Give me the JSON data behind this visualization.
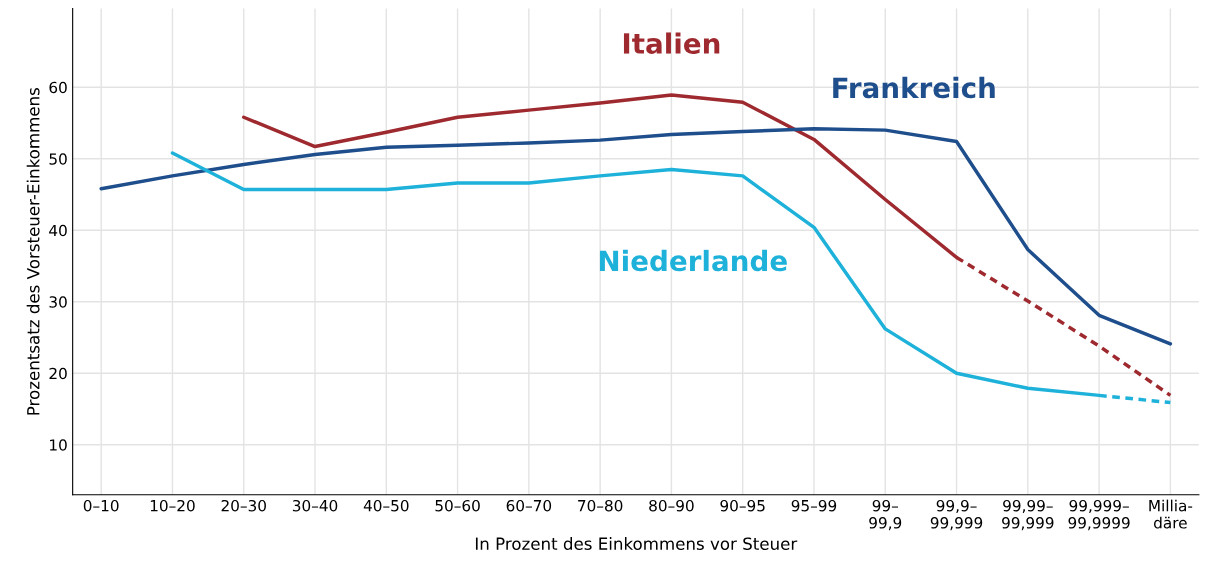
{
  "chart_data": {
    "type": "line",
    "xlabel": "In Prozent des Einkommens vor Steuer",
    "ylabel": "Prozentsatz des Vorsteuer-Einkommens",
    "categories": [
      "0–10",
      "10–20",
      "20–30",
      "30–40",
      "40–50",
      "50–60",
      "60–70",
      "70–80",
      "80–90",
      "90–95",
      "95–99",
      "99–\n99,9",
      "99,9–\n99,999",
      "99,99–\n99,999",
      "99,999–\n99,9999",
      "Millia-\ndäre"
    ],
    "series": [
      {
        "name": "Italien",
        "color": "#9e2a2f",
        "line_style": "solid",
        "values": [
          null,
          null,
          55.8,
          51.7,
          53.7,
          55.8,
          56.8,
          57.8,
          58.9,
          57.9,
          52.7,
          44.3,
          36.2,
          null,
          null,
          null
        ]
      },
      {
        "color": "#9e2a2f",
        "line_style": "dashed",
        "values": [
          null,
          null,
          null,
          null,
          null,
          null,
          null,
          null,
          null,
          null,
          null,
          null,
          36.2,
          30.1,
          23.8,
          16.9
        ]
      },
      {
        "name": "Frankreich",
        "color": "#1f4e8c",
        "line_style": "solid",
        "values": [
          45.8,
          47.6,
          49.2,
          50.6,
          51.6,
          51.9,
          52.2,
          52.6,
          53.4,
          53.8,
          54.2,
          54.0,
          52.4,
          37.3,
          28.1,
          24.1
        ]
      },
      {
        "name": "Niederlande",
        "color": "#1eb1d9",
        "line_style": "solid",
        "values": [
          null,
          50.8,
          45.7,
          45.7,
          45.7,
          46.6,
          46.6,
          47.6,
          48.5,
          47.6,
          40.4,
          26.2,
          20.0,
          17.9,
          16.9,
          null
        ]
      },
      {
        "color": "#1eb1d9",
        "line_style": "dashed",
        "values": [
          null,
          null,
          null,
          null,
          null,
          null,
          null,
          null,
          null,
          null,
          null,
          null,
          null,
          null,
          16.9,
          15.9
        ]
      }
    ],
    "ylim": [
      3,
      71
    ],
    "yticks": [
      10,
      20,
      30,
      40,
      50,
      60
    ],
    "grid": true,
    "legend": false,
    "marker": "none"
  }
}
